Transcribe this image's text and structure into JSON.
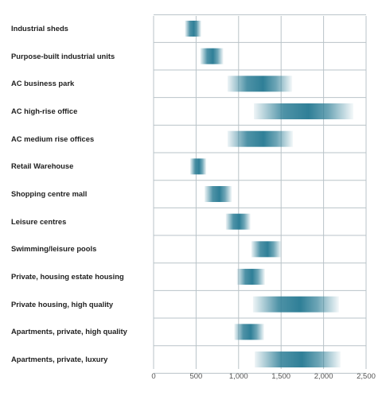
{
  "chart_data": {
    "type": "bar",
    "subtype": "floating-range",
    "categories": [
      "Industrial sheds",
      "Purpose-built industrial  units",
      "AC business park",
      "AC high-rise office",
      "AC medium rise offices",
      "Retail Warehouse",
      "Shopping centre mall",
      "Leisure centres",
      "Swimming/leisure pools",
      "Private, housing estate housing",
      "Private housing, high quality",
      "Apartments, private, high quality",
      "Apartments, private, luxury"
    ],
    "ranges": [
      [
        370,
        560
      ],
      [
        550,
        820
      ],
      [
        870,
        1630
      ],
      [
        1180,
        2350
      ],
      [
        870,
        1640
      ],
      [
        430,
        620
      ],
      [
        600,
        920
      ],
      [
        850,
        1140
      ],
      [
        1150,
        1500
      ],
      [
        980,
        1310
      ],
      [
        1170,
        2180
      ],
      [
        950,
        1300
      ],
      [
        1190,
        2200
      ]
    ],
    "title": "",
    "xlabel": "",
    "ylabel": "",
    "xlim": [
      0,
      2500
    ],
    "x_ticks": [
      0,
      500,
      1000,
      1500,
      2000,
      2500
    ],
    "x_tick_labels": [
      "0",
      "500",
      "1,000",
      "1,500",
      "2,000",
      "2,500"
    ],
    "grid": true,
    "legend": "none",
    "colors": {
      "bar": "#2f7f97",
      "grid": "#b9c3c8",
      "tick_text": "#555555",
      "label_text": "#1f1f1f"
    }
  }
}
